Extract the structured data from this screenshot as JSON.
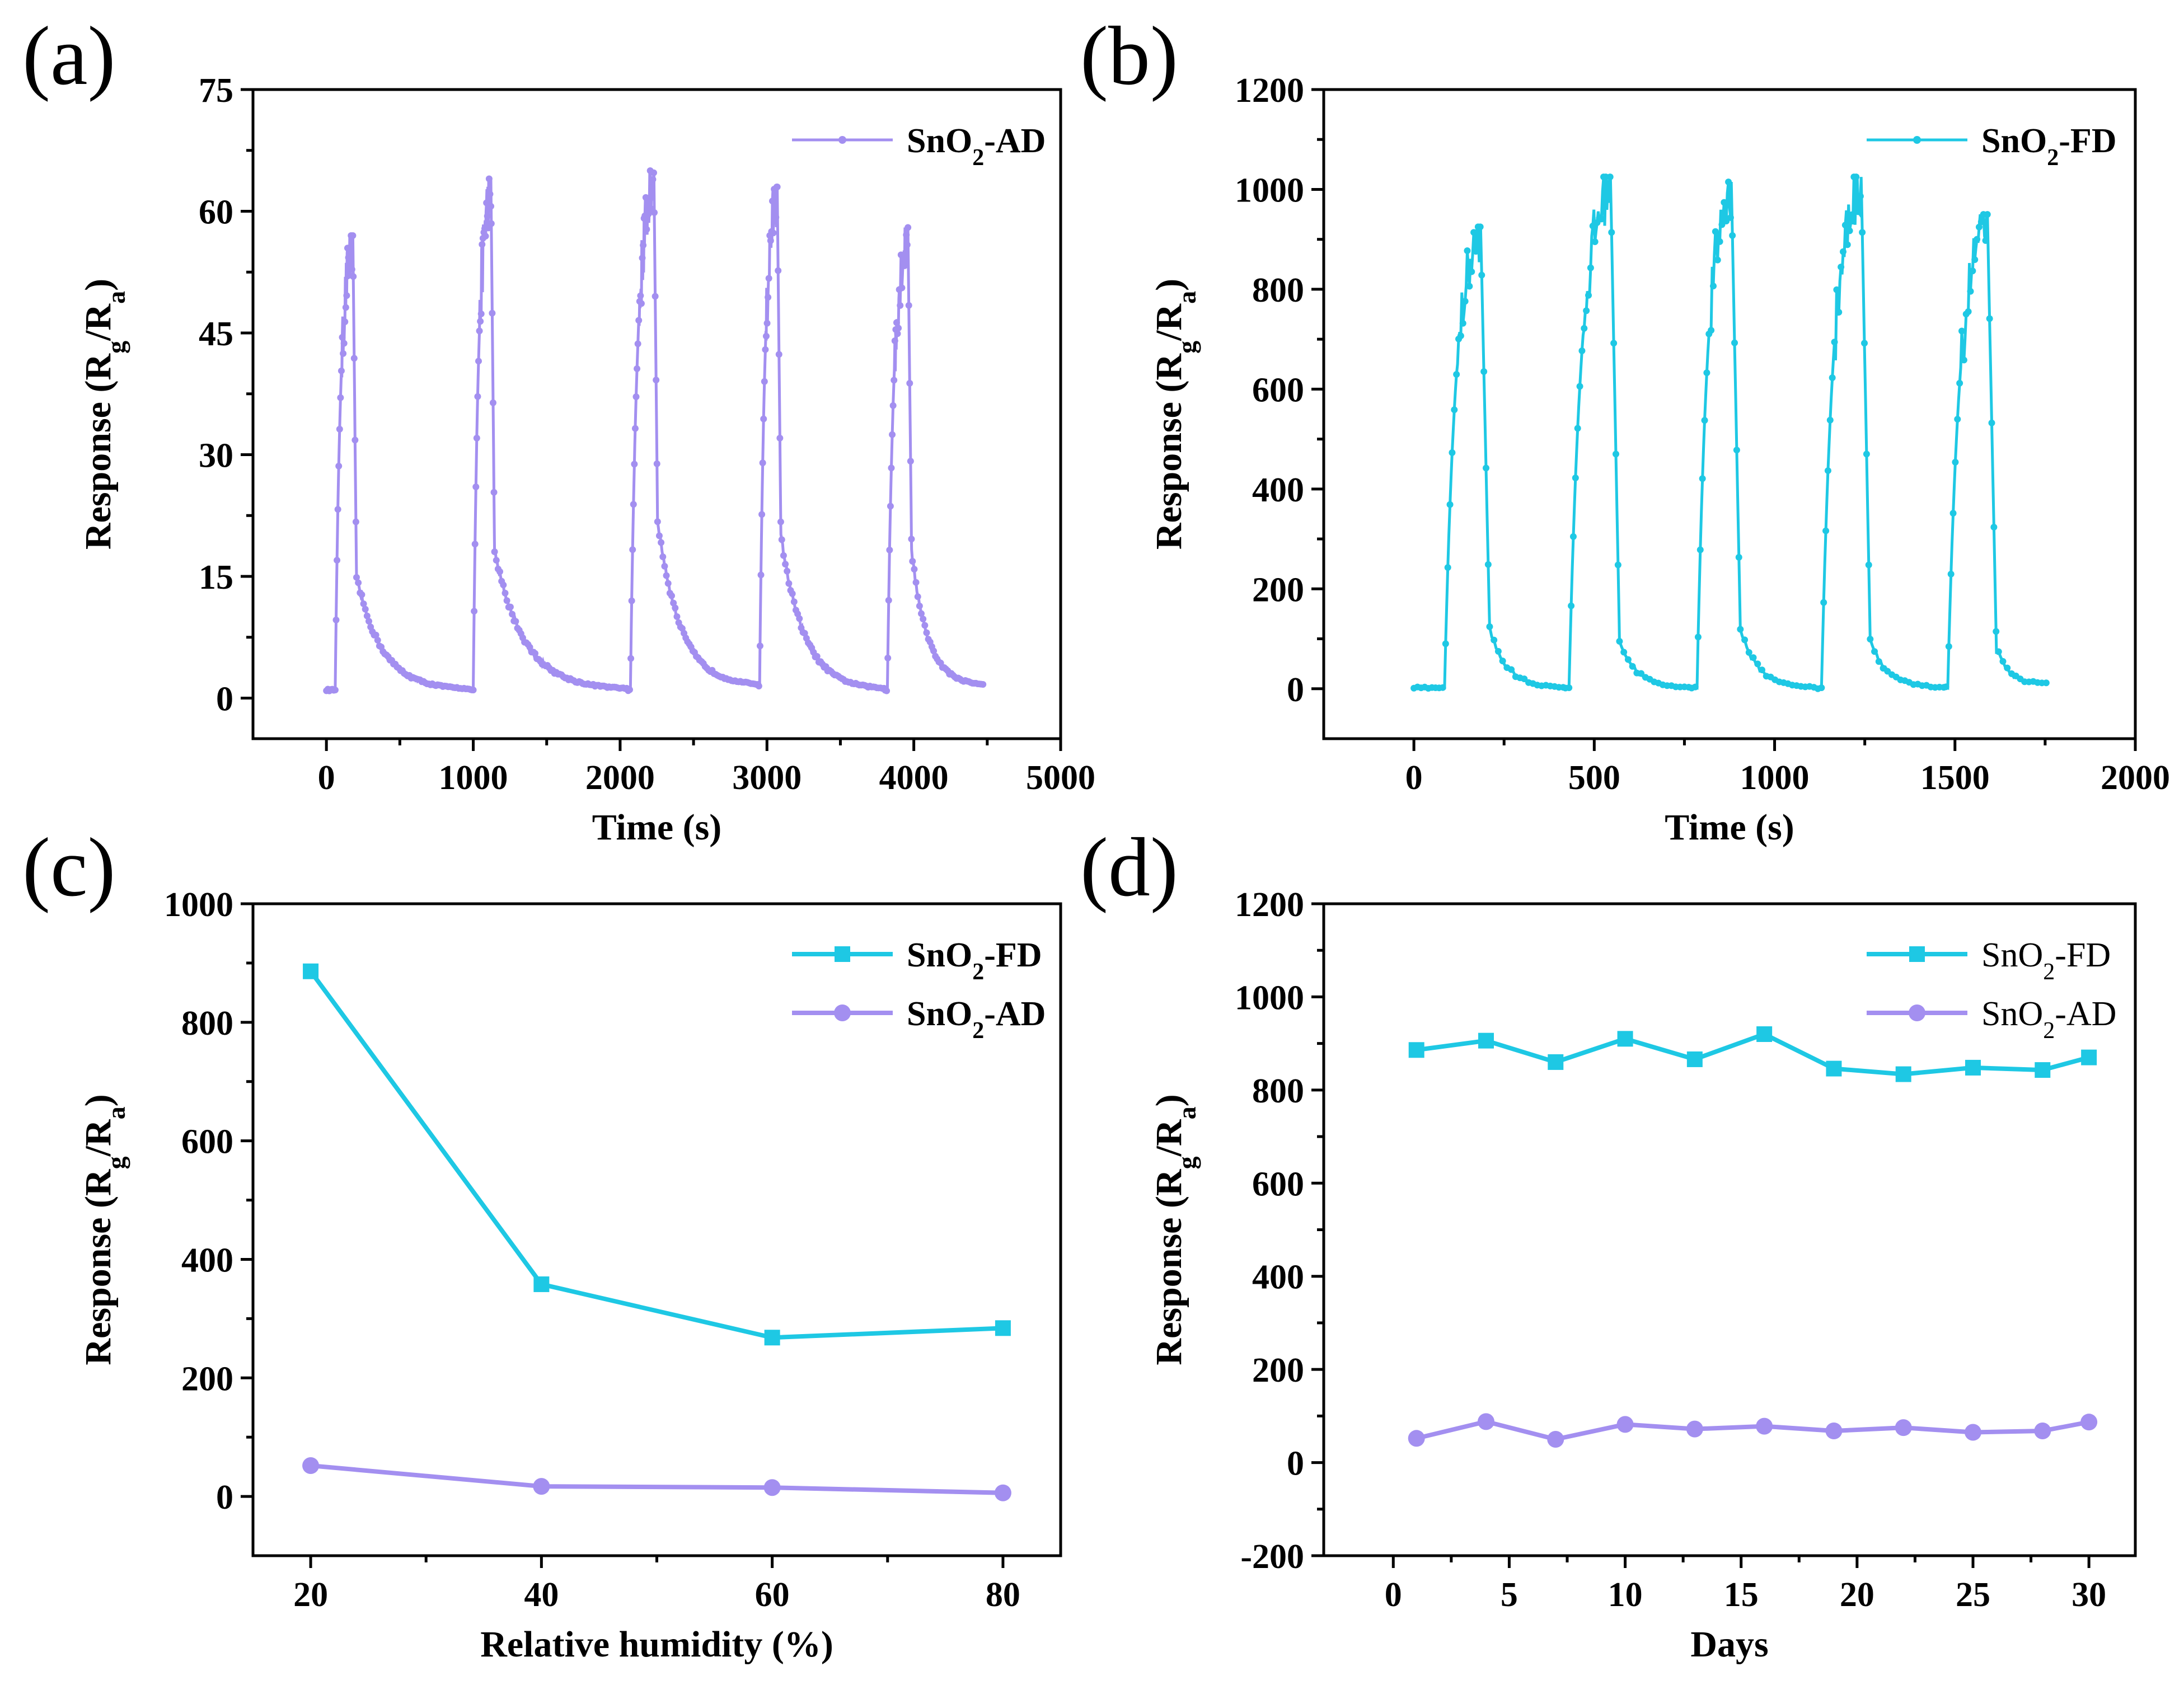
{
  "colors": {
    "sno2_fd": "#1ec8e4",
    "sno2_ad": "#a38ff0"
  },
  "panels": [
    {
      "panel_label": "(a)",
      "xlabel": "Time (s)",
      "ylabel": "Response (Rg/Ra)",
      "xticks": [
        "0",
        "1000",
        "2000",
        "3000",
        "4000",
        "5000"
      ],
      "yticks": [
        "0",
        "15",
        "30",
        "45",
        "60",
        "75"
      ],
      "legend": [
        "SnO2-AD"
      ]
    },
    {
      "panel_label": "(b)",
      "xlabel": "Time (s)",
      "ylabel": "Response (Rg/Ra)",
      "xticks": [
        "0",
        "500",
        "1000",
        "1500",
        "2000"
      ],
      "yticks": [
        "0",
        "200",
        "400",
        "600",
        "800",
        "1000",
        "1200"
      ],
      "legend": [
        "SnO2-FD"
      ]
    },
    {
      "panel_label": "(c)",
      "xlabel": "Relative humidity (%)",
      "ylabel": "Response (Rg/Ra)",
      "xticks": [
        "20",
        "40",
        "60",
        "80"
      ],
      "yticks": [
        "0",
        "200",
        "400",
        "600",
        "800",
        "1000"
      ],
      "legend": [
        "SnO2-FD",
        "SnO2-AD"
      ]
    },
    {
      "panel_label": "(d)",
      "xlabel": "Days",
      "ylabel": "Response (Rg/Ra)",
      "xticks": [
        "0",
        "5",
        "10",
        "15",
        "20",
        "25",
        "30"
      ],
      "yticks": [
        "-200",
        "0",
        "200",
        "400",
        "600",
        "800",
        "1000",
        "1200"
      ],
      "legend": [
        "SnO2-FD",
        "SnO2-AD"
      ]
    }
  ],
  "chart_data": [
    {
      "type": "line",
      "xlabel": "Time (s)",
      "ylabel": "Response (Rg/Ra)",
      "xlim": [
        -500,
        5000
      ],
      "ylim": [
        -5,
        75
      ],
      "grid": false,
      "legend_position": "top-right",
      "markers": "small dots",
      "series": [
        {
          "name": "SnO2-AD",
          "color": "#a38ff0",
          "cycles": [
            {
              "t_start": 60,
              "t_peak": 180,
              "t_end": 980,
              "baseline": 1.0,
              "peak": 57,
              "after_drop": 15,
              "end_value": 1.0
            },
            {
              "t_start": 1000,
              "t_peak": 1120,
              "t_end": 2050,
              "baseline": 1.0,
              "peak": 64,
              "after_drop": 18,
              "end_value": 1.0
            },
            {
              "t_start": 2070,
              "t_peak": 2230,
              "t_end": 2940,
              "baseline": 1.0,
              "peak": 65,
              "after_drop": 22,
              "end_value": 1.5
            },
            {
              "t_start": 2950,
              "t_peak": 3070,
              "t_end": 3800,
              "baseline": 1.5,
              "peak": 63,
              "after_drop": 20,
              "end_value": 1.0
            },
            {
              "t_start": 3820,
              "t_peak": 3960,
              "t_end": 4480,
              "baseline": 1.0,
              "peak": 58,
              "after_drop": 18,
              "end_value": 1.5
            }
          ]
        }
      ]
    },
    {
      "type": "line",
      "xlabel": "Time (s)",
      "ylabel": "Response (Rg/Ra)",
      "xlim": [
        -250,
        2000
      ],
      "ylim": [
        -100,
        1200
      ],
      "grid": false,
      "legend_position": "top-right",
      "markers": "small dots",
      "series": [
        {
          "name": "SnO2-FD",
          "color": "#1ec8e4",
          "cycles": [
            {
              "t_start": 85,
              "t_peak": 185,
              "t_end": 420,
              "baseline": 2,
              "peak": 925,
              "after_drop": 120,
              "end_value": 2
            },
            {
              "t_start": 430,
              "t_peak": 545,
              "t_end": 770,
              "baseline": 2,
              "peak": 1025,
              "after_drop": 100,
              "end_value": 2
            },
            {
              "t_start": 785,
              "t_peak": 880,
              "t_end": 1120,
              "baseline": 2,
              "peak": 1015,
              "after_drop": 120,
              "end_value": 2
            },
            {
              "t_start": 1130,
              "t_peak": 1240,
              "t_end": 1470,
              "baseline": 2,
              "peak": 1025,
              "after_drop": 100,
              "end_value": 2
            },
            {
              "t_start": 1480,
              "t_peak": 1590,
              "t_end": 1760,
              "baseline": 2,
              "peak": 950,
              "after_drop": 80,
              "end_value": 10
            }
          ]
        }
      ]
    },
    {
      "type": "line",
      "xlabel": "Relative humidity (%)",
      "ylabel": "Response (Rg/Ra)",
      "xlim": [
        15,
        85
      ],
      "ylim": [
        -100,
        1000
      ],
      "grid": false,
      "legend_position": "top-right",
      "x": [
        20,
        40,
        60,
        80
      ],
      "series": [
        {
          "name": "SnO2-FD",
          "color": "#1ec8e4",
          "marker": "square",
          "values": [
            886,
            358,
            268,
            284
          ]
        },
        {
          "name": "SnO2-AD",
          "color": "#a38ff0",
          "marker": "circle",
          "values": [
            52,
            17,
            15,
            6
          ]
        }
      ]
    },
    {
      "type": "line",
      "xlabel": "Days",
      "ylabel": "Response (Rg/Ra)",
      "xlim": [
        -3,
        32
      ],
      "ylim": [
        -200,
        1200
      ],
      "grid": false,
      "legend_position": "top-right",
      "x": [
        1,
        4,
        7,
        10,
        13,
        16,
        19,
        22,
        25,
        28,
        30
      ],
      "series": [
        {
          "name": "SnO2-FD",
          "color": "#1ec8e4",
          "marker": "square",
          "values": [
            886,
            906,
            860,
            910,
            866,
            920,
            846,
            834,
            848,
            843,
            870
          ]
        },
        {
          "name": "SnO2-AD",
          "color": "#a38ff0",
          "marker": "circle",
          "values": [
            52,
            88,
            50,
            82,
            72,
            78,
            68,
            75,
            65,
            68,
            87
          ]
        }
      ]
    }
  ]
}
